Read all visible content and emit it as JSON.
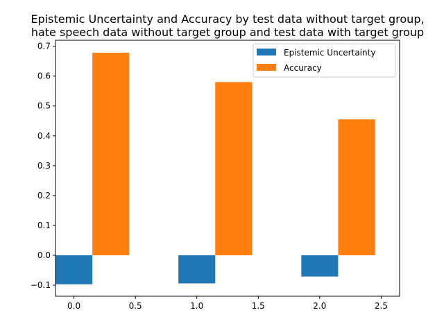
{
  "chart_data": {
    "type": "bar",
    "title_lines": [
      "Epistemic Uncertainty and Accuracy by test data without target group,",
      "hate speech data without target group and test data with target group"
    ],
    "xlabel": "",
    "ylabel": "",
    "x_ticks": [
      "0.0",
      "0.5",
      "1.0",
      "1.5",
      "2.0",
      "2.5"
    ],
    "y_ticks": [
      "−0.1",
      "0.0",
      "0.1",
      "0.2",
      "0.3",
      "0.4",
      "0.5",
      "0.6",
      "0.7"
    ],
    "xlim": [
      -0.15,
      2.65
    ],
    "ylim": [
      -0.137,
      0.72
    ],
    "bar_width": 0.3,
    "x": [
      0,
      1,
      2
    ],
    "series": [
      {
        "name": "Epistemic Uncertainty",
        "color": "#1f77b4",
        "offset": 0,
        "values": [
          -0.097,
          -0.094,
          -0.071
        ]
      },
      {
        "name": "Accuracy",
        "color": "#ff7f0e",
        "offset": 0.3,
        "values": [
          0.678,
          0.58,
          0.455
        ]
      }
    ],
    "legend": {
      "placement": "top-right"
    },
    "grid": false
  }
}
